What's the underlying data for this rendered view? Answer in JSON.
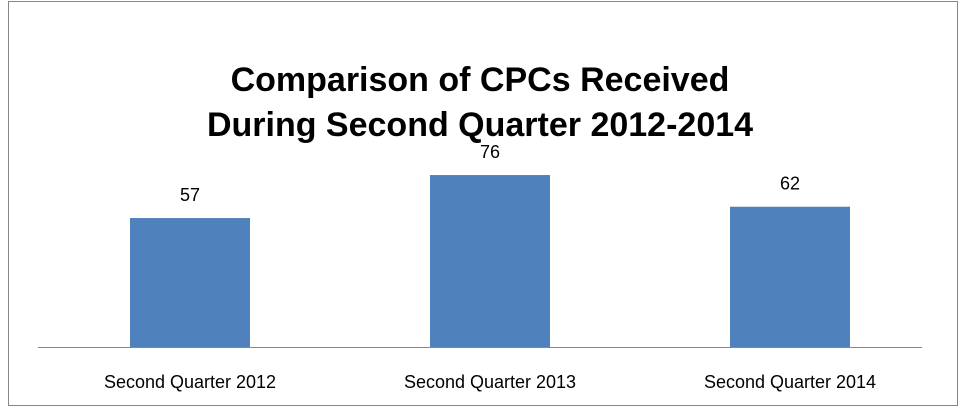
{
  "chart_data": {
    "type": "bar",
    "title": [
      "Comparison of CPCs Received",
      "During Second Quarter 2012-2014"
    ],
    "categories": [
      "Second Quarter 2012",
      "Second Quarter 2013",
      "Second Quarter 2014"
    ],
    "values": [
      57,
      76,
      62
    ],
    "color": "#4f81bd",
    "ylim": [
      0,
      80
    ]
  }
}
